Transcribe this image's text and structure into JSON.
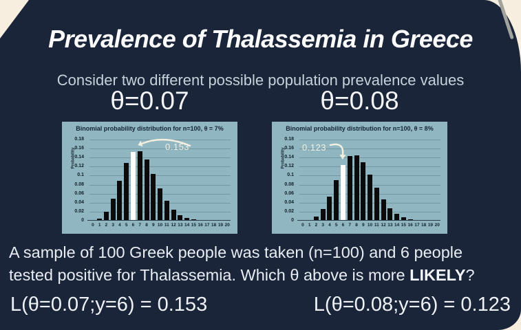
{
  "slide": {
    "title": "Prevalence of Thalassemia in Greece",
    "subtitle": "Consider two different possible population prevalence values",
    "body_line1": "A sample of 100 Greek people was taken (n=100) and 6 people",
    "body_line2_prefix": "tested positive for Thalassemia. Which θ above is more ",
    "body_line2_bold": "LIKELY",
    "body_line2_suffix": "?",
    "formula_left": "L(θ=0.07;y=6) = 0.153",
    "formula_right": "L(θ=0.08;y=6) = 0.123"
  },
  "colors": {
    "background_dark": "#1a2539",
    "background_cream": "#f7eedf",
    "chart_panel": "#8fb6c1",
    "bar": "#0b0b0b",
    "highlight_bar": "#ffffff",
    "annotation_text": "#f2efdf",
    "subtitle_text": "#c7d1da",
    "pencil_line": "#a3a39e"
  },
  "chart_data": [
    {
      "type": "bar",
      "header": "θ=0.07",
      "title": "Binomial probability distribution for n=100, θ = 7%",
      "ylabel": "Probability",
      "xlabel": "",
      "categories": [
        "0",
        "1",
        "2",
        "3",
        "4",
        "5",
        "6",
        "7",
        "8",
        "9",
        "10",
        "11",
        "12",
        "13",
        "14",
        "15",
        "16",
        "17",
        "18",
        "19",
        "20"
      ],
      "values": [
        0.0007,
        0.0053,
        0.0198,
        0.0486,
        0.0888,
        0.1283,
        0.1529,
        0.1545,
        0.1352,
        0.104,
        0.0712,
        0.0439,
        0.0245,
        0.0125,
        0.0058,
        0.0025,
        0.001,
        0.0004,
        0.0001,
        0.0,
        0.0
      ],
      "highlight_index": 6,
      "highlight_value": 0.153,
      "annotation": "0.153",
      "y_tick_labels": [
        "0.18",
        "0.16",
        "0.14",
        "0.12",
        "0.1",
        "0.08",
        "0.06",
        "0.04",
        "0.02",
        "0"
      ],
      "ylim": [
        0,
        0.18
      ],
      "grid": true,
      "legend": false
    },
    {
      "type": "bar",
      "header": "θ=0.08",
      "title": "Binomial probability distribution for n=100, θ = 8%",
      "ylabel": "Probability",
      "xlabel": "",
      "categories": [
        "0",
        "1",
        "2",
        "3",
        "4",
        "5",
        "6",
        "7",
        "8",
        "9",
        "10",
        "11",
        "12",
        "13",
        "14",
        "15",
        "16",
        "17",
        "18",
        "19",
        "20"
      ],
      "values": [
        0.0002,
        0.0021,
        0.009,
        0.0254,
        0.0536,
        0.0895,
        0.1233,
        0.144,
        0.1455,
        0.1293,
        0.1024,
        0.0728,
        0.047,
        0.0276,
        0.0149,
        0.0074,
        0.0034,
        0.0015,
        0.0006,
        0.0002,
        0.0001
      ],
      "highlight_index": 6,
      "highlight_value": 0.123,
      "annotation": "0.123",
      "y_tick_labels": [
        "0.18",
        "0.16",
        "0.14",
        "0.12",
        "0.1",
        "0.08",
        "0.06",
        "0.04",
        "0.02",
        "0"
      ],
      "ylim": [
        0,
        0.18
      ],
      "grid": true,
      "legend": false
    }
  ]
}
